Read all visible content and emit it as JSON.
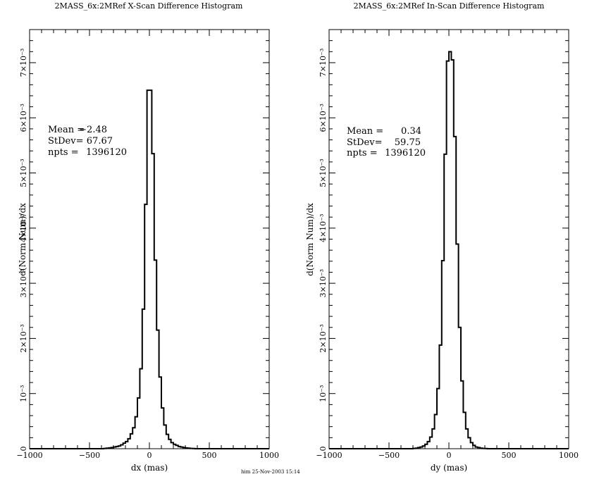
{
  "footer": "him 25-Nov-2003 15:14",
  "chart_data": [
    {
      "type": "histogram",
      "title": "2MASS_6x:2MRef X-Scan Difference Histogram",
      "xlabel": "dx (mas)",
      "ylabel": "d(Norm Num)/dx",
      "xlim": [
        -1000,
        1000
      ],
      "ylim": [
        0,
        0.0076
      ],
      "x_ticks": [
        -1000,
        -500,
        0,
        500,
        1000
      ],
      "x_tick_labels": [
        "−1000",
        "−500",
        "0",
        "500",
        "1000"
      ],
      "y_ticks": [
        0,
        0.001,
        0.002,
        0.003,
        0.004,
        0.005,
        0.006,
        0.007
      ],
      "y_tick_labels": [
        "0",
        "10⁻³",
        "2×10⁻³",
        "3×10⁻³",
        "4×10⁻³",
        "5×10⁻³",
        "6×10⁻³",
        "7×10⁻³"
      ],
      "grid": false,
      "bin_width": 20,
      "bin_edges": [
        -380,
        -360,
        -340,
        -320,
        -300,
        -280,
        -260,
        -240,
        -220,
        -200,
        -180,
        -160,
        -140,
        -120,
        -100,
        -80,
        -60,
        -40,
        -20,
        0,
        20,
        40,
        60,
        80,
        100,
        120,
        140,
        160,
        180,
        200,
        220,
        240,
        260,
        280,
        300,
        320,
        340,
        360,
        380
      ],
      "values": [
        5e-06,
        1e-05,
        1.5e-05,
        2e-05,
        3e-05,
        4e-05,
        5e-05,
        7e-05,
        0.0001,
        0.00013,
        0.00018,
        0.00027,
        0.00038,
        0.00058,
        0.00092,
        0.00145,
        0.00253,
        0.00443,
        0.0065,
        0.0065,
        0.00535,
        0.00342,
        0.00215,
        0.0013,
        0.00074,
        0.00043,
        0.00026,
        0.00017,
        0.00011,
        8e-05,
        6e-05,
        4e-05,
        3e-05,
        2e-05,
        1.5e-05,
        1e-05,
        5e-06,
        3e-06
      ],
      "stats": {
        "mean_label": "Mean =",
        "mean_value": "−2.48",
        "stdev_label": "StDev=",
        "stdev_value": "67.67",
        "npts_label": "npts =",
        "npts_value": "1396120"
      }
    },
    {
      "type": "histogram",
      "title": "2MASS_6x:2MRef In-Scan Difference Histogram",
      "xlabel": "dy (mas)",
      "ylabel": "d(Norm Num)/dx",
      "xlim": [
        -1000,
        1000
      ],
      "ylim": [
        0,
        0.0076
      ],
      "x_ticks": [
        -1000,
        -500,
        0,
        500,
        1000
      ],
      "x_tick_labels": [
        "−1000",
        "−500",
        "0",
        "500",
        "1000"
      ],
      "y_ticks": [
        0,
        0.001,
        0.002,
        0.003,
        0.004,
        0.005,
        0.006,
        0.007
      ],
      "y_tick_labels": [
        "0",
        "10⁻³",
        "2×10⁻³",
        "3×10⁻³",
        "4×10⁻³",
        "5×10⁻³",
        "6×10⁻³",
        "7×10⁻³"
      ],
      "grid": false,
      "bin_width": 20,
      "bin_edges": [
        -300,
        -280,
        -260,
        -240,
        -220,
        -200,
        -180,
        -160,
        -140,
        -120,
        -100,
        -80,
        -60,
        -40,
        -20,
        0,
        20,
        40,
        60,
        80,
        100,
        120,
        140,
        160,
        180,
        200,
        220,
        240,
        260,
        280,
        300,
        320
      ],
      "values": [
        5e-06,
        1e-05,
        2e-05,
        3e-05,
        5e-05,
        8e-05,
        0.00013,
        0.00021,
        0.00036,
        0.00062,
        0.00109,
        0.00188,
        0.00341,
        0.00534,
        0.00703,
        0.0072,
        0.00705,
        0.00566,
        0.00371,
        0.0022,
        0.00123,
        0.00066,
        0.00036,
        0.0002,
        0.00011,
        6e-05,
        3e-05,
        2e-05,
        1e-05,
        5e-06,
        3e-06
      ],
      "stats": {
        "mean_label": "Mean =",
        "mean_value": "0.34",
        "stdev_label": "StDev=",
        "stdev_value": "59.75",
        "npts_label": "npts =",
        "npts_value": "1396120"
      }
    }
  ]
}
